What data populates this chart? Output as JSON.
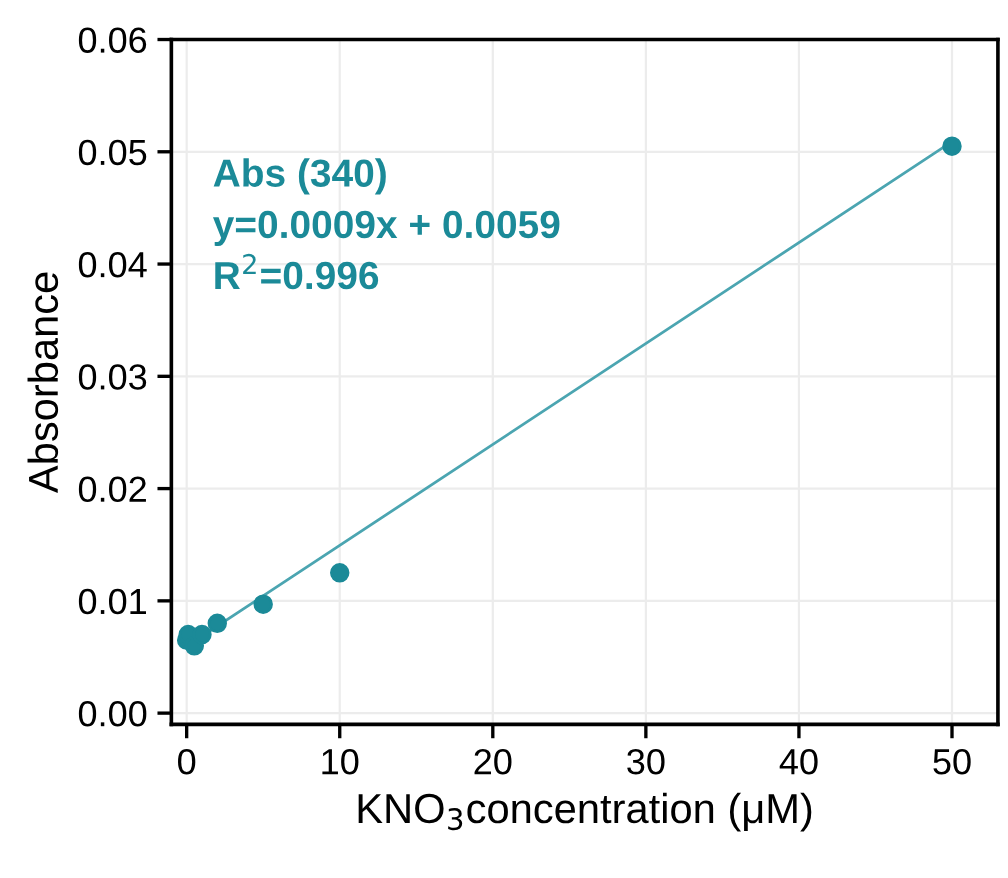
{
  "chart_data": {
    "type": "scatter",
    "xlabel": "KNO$_{3}$concentration (μM)",
    "ylabel": "Absorbance",
    "series": [
      {
        "color": "#1b8a98",
        "marker": "circle",
        "x": [
          0,
          0.1,
          0.5,
          1,
          2,
          5,
          10,
          50
        ],
        "values": [
          0.0065,
          0.007,
          0.006,
          0.007,
          0.008,
          0.0097,
          0.0125,
          0.0505
        ]
      },
      {
        "type": "line",
        "color": "#4ba5b1",
        "x": [
          0.5,
          50
        ],
        "values": [
          0.0064,
          0.0509
        ]
      }
    ],
    "annotations": [
      "Abs (340)",
      "y=0.0009x + 0.0059",
      "R$^{2}$=0.996"
    ],
    "xlim": [
      -1,
      53
    ],
    "xticks": [
      0,
      10,
      20,
      30,
      40,
      50
    ],
    "ylim": [
      -0.001,
      0.06
    ],
    "yticks": [
      {
        "value": 0,
        "label": "0.00"
      },
      0.01,
      0.02,
      0.03,
      0.04,
      0.05,
      0.06
    ],
    "grid": true,
    "line_style": "solid"
  }
}
